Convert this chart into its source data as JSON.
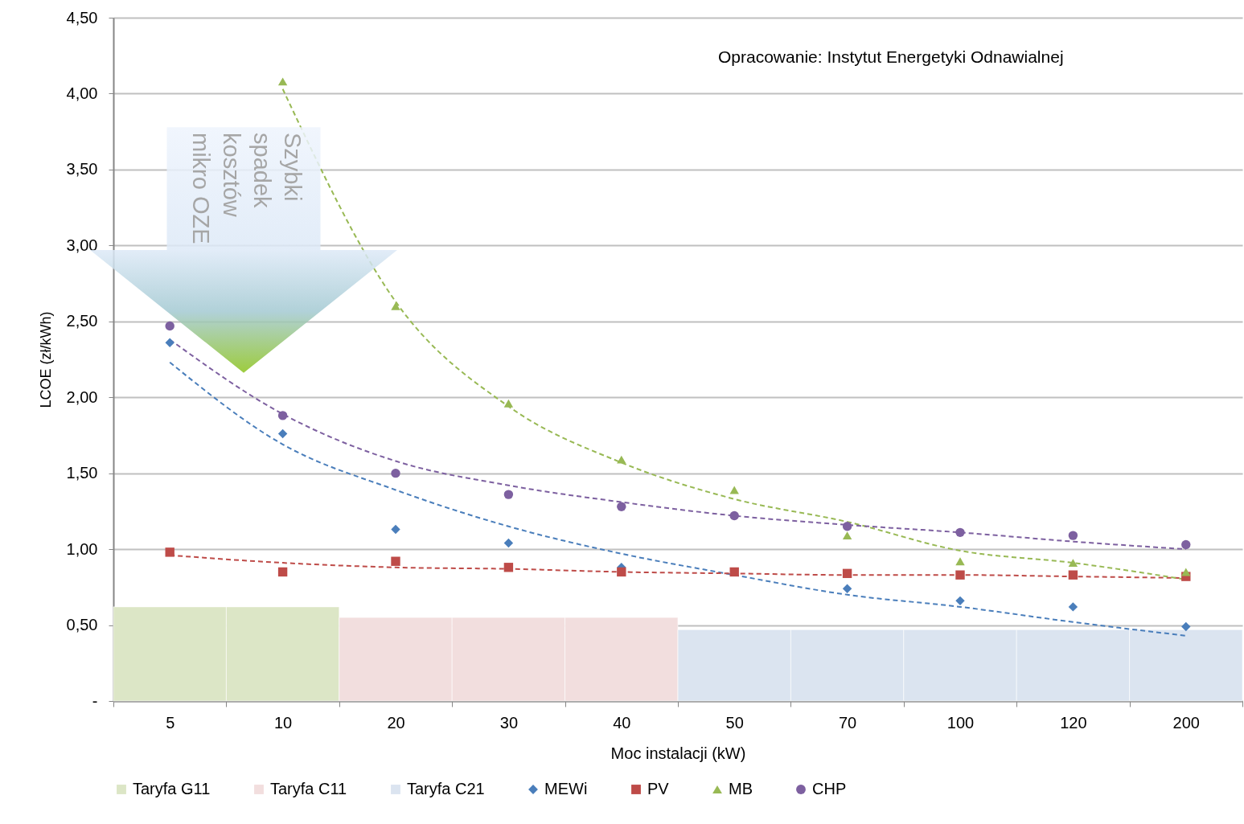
{
  "chart_data": {
    "type": "scatter",
    "xlabel": "Moc instalacji (kW)",
    "ylabel": "LCOE (zł/kWh)",
    "categories": [
      "5",
      "10",
      "20",
      "30",
      "40",
      "50",
      "70",
      "100",
      "120",
      "200"
    ],
    "ylim": [
      0,
      4.5
    ],
    "yticks": [
      {
        "value": 0,
        "label": "-"
      },
      {
        "value": 0.5,
        "label": "0,50"
      },
      {
        "value": 1,
        "label": "1,00"
      },
      {
        "value": 1.5,
        "label": "1,50"
      },
      {
        "value": 2,
        "label": "2,00"
      },
      {
        "value": 2.5,
        "label": "2,50"
      },
      {
        "value": 3,
        "label": "3,00"
      },
      {
        "value": 3.5,
        "label": "3,50"
      },
      {
        "value": 4,
        "label": "4,00"
      },
      {
        "value": 4.5,
        "label": "4,50"
      }
    ],
    "grid": "y",
    "legend": "bottom",
    "annotations": [
      "Opracowanie: Instytut Energetyki Odnawialnej",
      "Szybki spadek kosztów mikro OZE"
    ],
    "series": [
      {
        "name": "Taryfa G11",
        "type": "bar",
        "color": "#dce6c6",
        "values": [
          0.62,
          0.62,
          null,
          null,
          null,
          null,
          null,
          null,
          null,
          null
        ]
      },
      {
        "name": "Taryfa C11",
        "type": "bar",
        "color": "#f2dede",
        "values": [
          null,
          null,
          0.55,
          0.55,
          0.55,
          null,
          null,
          null,
          null,
          null
        ]
      },
      {
        "name": "Taryfa C21",
        "type": "bar",
        "color": "#dbe4f0",
        "values": [
          null,
          null,
          null,
          null,
          null,
          0.47,
          0.47,
          0.47,
          0.47,
          0.47
        ]
      },
      {
        "type": "line",
        "color": "#4a7ebb",
        "line_style": "dashed",
        "marker": "none",
        "values": [
          2.23,
          1.69,
          1.39,
          1.15,
          0.97,
          0.83,
          0.7,
          0.62,
          0.52,
          0.43
        ]
      },
      {
        "type": "line",
        "color": "#be4b48",
        "line_style": "dashed",
        "marker": "none",
        "values": [
          0.96,
          0.91,
          0.88,
          0.87,
          0.85,
          0.84,
          0.83,
          0.83,
          0.82,
          0.81
        ]
      },
      {
        "type": "line",
        "color": "#98b954",
        "line_style": "dashed",
        "marker": "none",
        "values": [
          null,
          4.03,
          2.63,
          1.94,
          1.57,
          1.33,
          1.18,
          0.99,
          0.91,
          0.8
        ]
      },
      {
        "type": "line",
        "color": "#7d60a0",
        "line_style": "dashed",
        "marker": "none",
        "values": [
          2.38,
          1.89,
          1.58,
          1.42,
          1.31,
          1.22,
          1.16,
          1.11,
          1.05,
          1.0
        ]
      },
      {
        "name": "MEWi",
        "marker": "diamond",
        "color": "#4a7ebb",
        "values": [
          2.36,
          1.76,
          1.13,
          1.04,
          0.88,
          null,
          0.74,
          0.66,
          0.62,
          0.49
        ]
      },
      {
        "name": "PV",
        "marker": "square",
        "color": "#be4b48",
        "values": [
          0.98,
          0.85,
          0.92,
          0.88,
          0.85,
          0.85,
          0.84,
          0.83,
          0.83,
          0.82
        ]
      },
      {
        "name": "MB",
        "marker": "triangle",
        "color": "#98b954",
        "values": [
          null,
          4.08,
          2.6,
          1.96,
          1.59,
          1.39,
          1.09,
          0.92,
          0.91,
          0.85
        ]
      },
      {
        "name": "CHP",
        "marker": "circle",
        "color": "#7d60a0",
        "values": [
          2.47,
          1.88,
          1.5,
          1.36,
          1.28,
          1.22,
          1.15,
          1.11,
          1.09,
          1.03
        ]
      }
    ]
  }
}
